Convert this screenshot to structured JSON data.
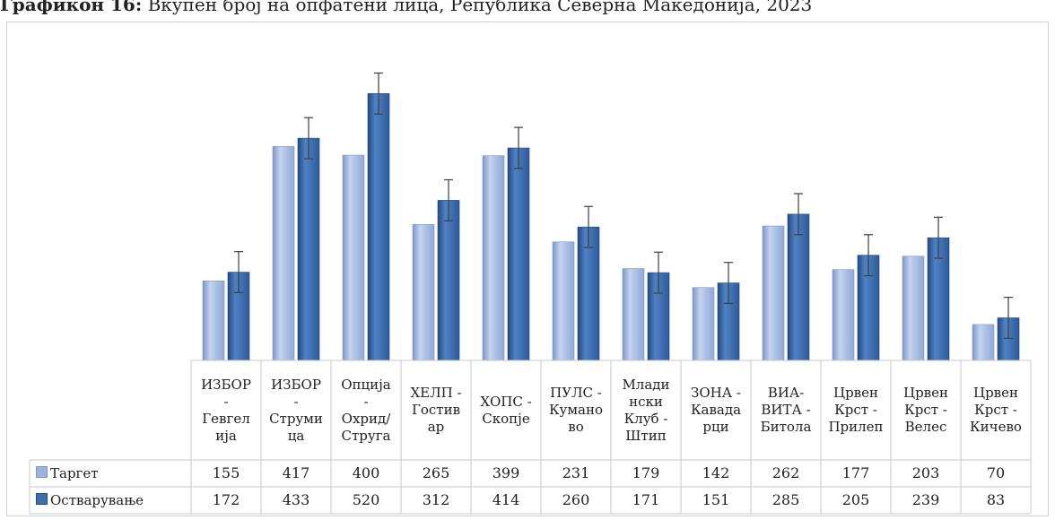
{
  "title": {
    "bold": "Графикон 16:",
    "rest": " Вкупен број на опфатени лица, Република Северна Македонија, 2023"
  },
  "colors": {
    "target": "#9cb3dd",
    "target_dark": "#7e97c6",
    "actual": "#3d6eb0",
    "actual_dark": "#24497f",
    "error_bar": "#404040"
  },
  "chart_data": {
    "type": "bar",
    "categories": [
      "ИЗБОР - Гевгелија",
      "ИЗБОР - Струмица",
      "Опција - Охрид/Струга",
      "ХЕЛП - Гостивар",
      "ХОПС - Скопје",
      "ПУЛС - Куманово",
      "Младински Клуб - Штип",
      "ЗОНА - Кавадарци",
      "ВИА-ВИТА - Битола",
      "Црвен Крст - Прилеп",
      "Црвен Крст - Велес",
      "Црвен Крст - Кичево"
    ],
    "category_lines": [
      [
        "ИЗБОР",
        "-",
        "Гевгел",
        "ија"
      ],
      [
        "ИЗБОР",
        "-",
        "Струми",
        "ца"
      ],
      [
        "Опција",
        "-",
        "Охрид/",
        "Струга"
      ],
      [
        "ХЕЛП -",
        "Гостив",
        "ар"
      ],
      [
        "ХОПС -",
        "Скопје"
      ],
      [
        "ПУЛС -",
        "Кумано",
        "во"
      ],
      [
        "Млади",
        "нски",
        "Клуб -",
        "Штип"
      ],
      [
        "ЗОНА -",
        "Кавада",
        "рци"
      ],
      [
        "ВИА-",
        "ВИТА -",
        "Битола"
      ],
      [
        "Црвен",
        "Крст -",
        "Прилеп"
      ],
      [
        "Црвен",
        "Крст -",
        "Велес"
      ],
      [
        "Црвен",
        "Крст -",
        "Кичево"
      ]
    ],
    "series": [
      {
        "name": "Таргет",
        "values": [
          155,
          417,
          400,
          265,
          399,
          231,
          179,
          142,
          262,
          177,
          203,
          70
        ]
      },
      {
        "name": "Остварување",
        "values": [
          172,
          433,
          520,
          312,
          414,
          260,
          171,
          151,
          285,
          205,
          239,
          83
        ]
      }
    ],
    "error_bar_half": 40,
    "ylim": [
      0,
      580
    ],
    "grid": false,
    "legend": "data-table"
  }
}
